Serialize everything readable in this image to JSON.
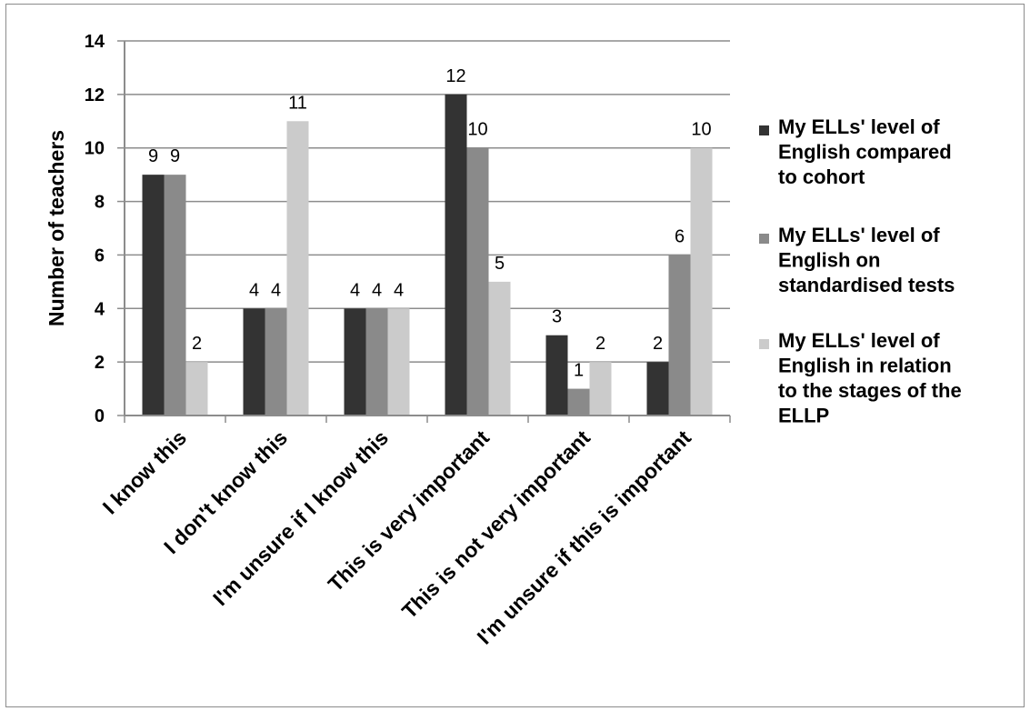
{
  "chart_data": {
    "type": "bar",
    "title": "",
    "xlabel": "",
    "ylabel": "Number of teachers",
    "ylim": [
      0,
      14
    ],
    "yticks": [
      0,
      2,
      4,
      6,
      8,
      10,
      12,
      14
    ],
    "grid": true,
    "legend_position": "right",
    "categories": [
      "I know this",
      "I don't know this",
      "I'm unsure if I know this",
      "This is very important",
      "This is not very important",
      "I'm unsure if this is important"
    ],
    "series": [
      {
        "name": "My ELLs' level of English compared to cohort",
        "legend_lines": [
          "My ELLs' level of",
          "English compared",
          "to cohort"
        ],
        "color": "#333333",
        "values": [
          9,
          4,
          4,
          12,
          3,
          2
        ]
      },
      {
        "name": "My ELLs' level of English on standardised tests",
        "legend_lines": [
          "My ELLs' level of",
          "English on",
          "standardised tests"
        ],
        "color": "#8a8a8a",
        "values": [
          9,
          4,
          4,
          10,
          1,
          6
        ]
      },
      {
        "name": "My ELLs' level of English in relation to the stages of the ELLP",
        "legend_lines": [
          "My ELLs' level of",
          "English in relation",
          "to the stages of the",
          "ELLP"
        ],
        "color": "#cbcbcb",
        "values": [
          2,
          11,
          4,
          5,
          2,
          10
        ]
      }
    ]
  }
}
